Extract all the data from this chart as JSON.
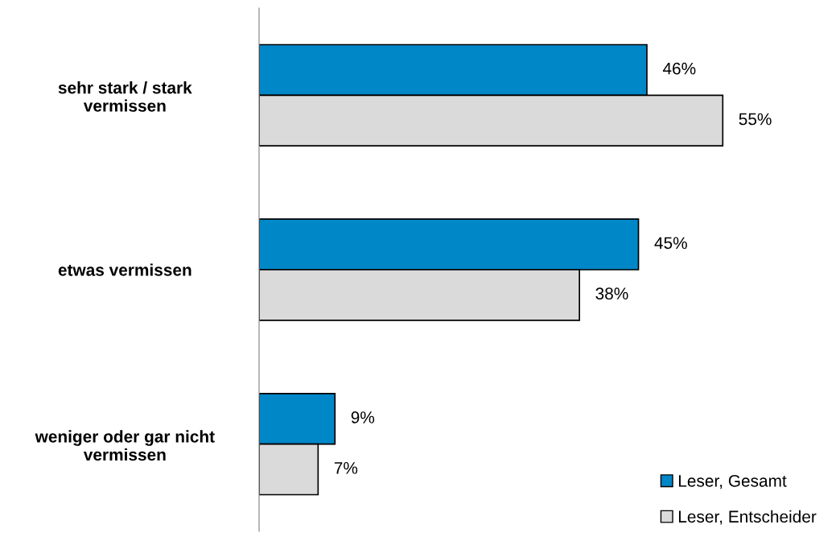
{
  "chart_data": {
    "type": "bar",
    "orientation": "horizontal",
    "categories": [
      "sehr stark / stark vermissen",
      "etwas vermissen",
      "weniger oder gar nicht vermissen"
    ],
    "series": [
      {
        "name": "Leser, Gesamt",
        "color": "#0087c8",
        "values": [
          46,
          45,
          9
        ],
        "value_labels": [
          "46%",
          "45%",
          "9%"
        ]
      },
      {
        "name": "Leser, Entscheider",
        "color": "#dadada",
        "values": [
          55,
          38,
          7
        ],
        "value_labels": [
          "55%",
          "38%",
          "7%"
        ]
      }
    ],
    "legend": "bottom right",
    "grid": false
  }
}
